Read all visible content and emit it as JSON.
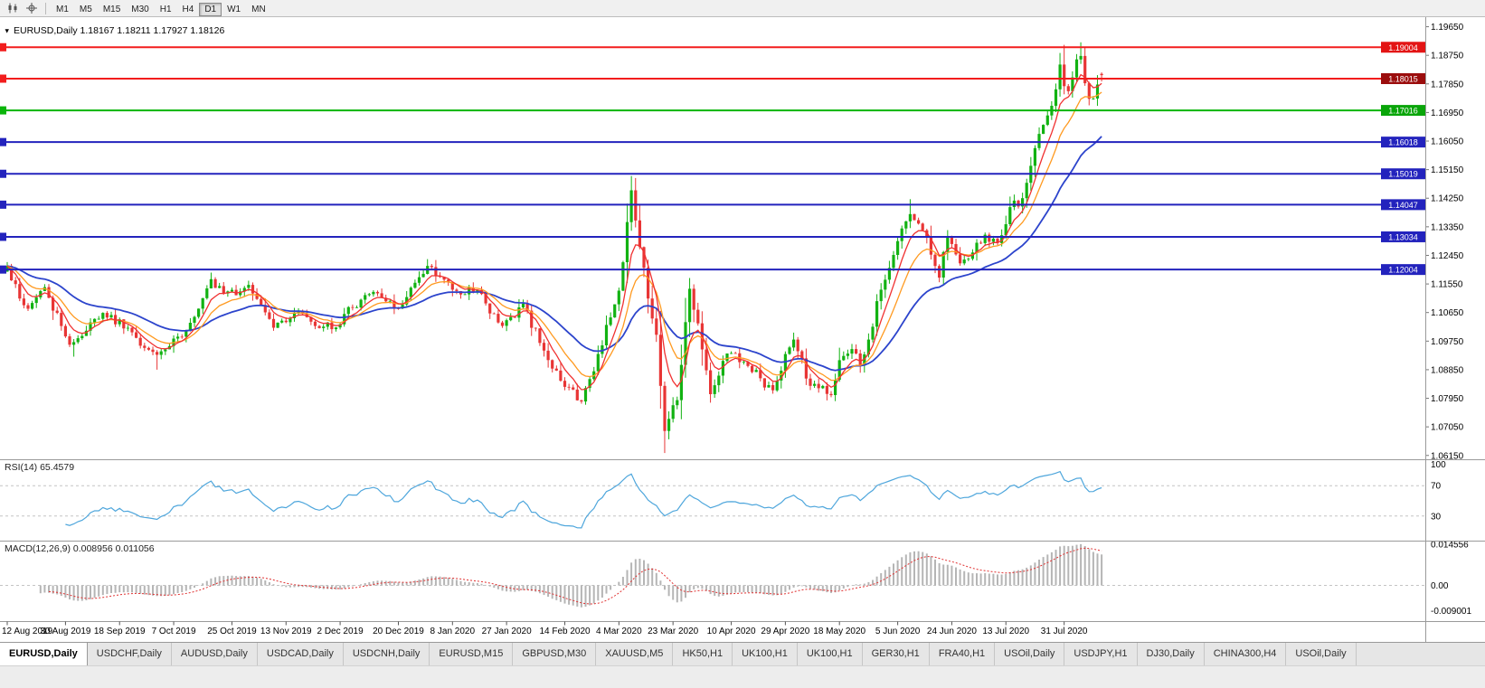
{
  "toolbar": {
    "timeframes": [
      "M1",
      "M5",
      "M15",
      "M30",
      "H1",
      "H4",
      "D1",
      "W1",
      "MN"
    ],
    "active_timeframe": "D1"
  },
  "chart_header": {
    "marker": "▼",
    "title": "EURUSD,Daily 1.18167 1.18211 1.17927 1.18126"
  },
  "colors": {
    "candle_up": "#12b212",
    "candle_down": "#e83535",
    "rsi": "#4ea6dc",
    "macd_hist": "#b5b5b5",
    "macd_signal": "#e03030",
    "panel_bg": "#ffffff"
  },
  "indicators": {
    "rsi": {
      "title": "RSI(14) 65.4579",
      "period": 14,
      "levels": [
        "100",
        "70",
        "30"
      ]
    },
    "macd": {
      "title": "MACD(12,26,9) 0.008956 0.011056",
      "fast": 12,
      "slow": 26,
      "signal": 9,
      "axis": [
        "0.014556",
        "0.00",
        "-0.009001"
      ]
    }
  },
  "chart_data": {
    "type": "candlestick",
    "symbol": "EURUSD",
    "timeframe": "Daily",
    "current_bar": {
      "open": 1.18167,
      "high": 1.18211,
      "low": 1.17927,
      "close": 1.18126
    },
    "candle_count": 264,
    "price_range": {
      "top": 1.1978,
      "bottom": 1.06115
    },
    "price_axis_ticks": [
      "1.19650",
      "1.18750",
      "1.17850",
      "1.16950",
      "1.16050",
      "1.15150",
      "1.14250",
      "1.13350",
      "1.12450",
      "1.11550",
      "1.10650",
      "1.09750",
      "1.08850",
      "1.07950",
      "1.07050",
      "1.06150"
    ],
    "horizontal_lines": [
      {
        "label": "1.19004",
        "color": "#f21d1d",
        "box": "#e31414"
      },
      {
        "label": "1.18015",
        "color": "#f21d1d",
        "box": "#9b0d0d"
      },
      {
        "label": "1.17016",
        "color": "#0ab50a",
        "box": "#09a509"
      },
      {
        "label": "1.16018",
        "color": "#2323bd",
        "box": "#2323bd"
      },
      {
        "label": "1.15019",
        "color": "#2323bd",
        "box": "#2323bd"
      },
      {
        "label": "1.14047",
        "color": "#2323bd",
        "box": "#2323bd"
      },
      {
        "label": "1.13034",
        "color": "#2323bd",
        "box": "#2323bd"
      },
      {
        "label": "1.12004",
        "color": "#2323bd",
        "box": "#2323bd"
      }
    ],
    "moving_averages": [
      {
        "name": "fast",
        "period": 6,
        "color": "#f03030"
      },
      {
        "name": "medium",
        "period": 12,
        "color": "#ff9a20"
      },
      {
        "name": "slow",
        "period": 30,
        "color": "#2c44cc"
      }
    ],
    "x_labels": [
      {
        "i": 0,
        "t": "12 Aug 2019"
      },
      {
        "i": 14,
        "t": "30 Aug 2019"
      },
      {
        "i": 27,
        "t": "18 Sep 2019"
      },
      {
        "i": 40,
        "t": "7 Oct 2019"
      },
      {
        "i": 54,
        "t": "25 Oct 2019"
      },
      {
        "i": 67,
        "t": "13 Nov 2019"
      },
      {
        "i": 80,
        "t": "2 Dec 2019"
      },
      {
        "i": 94,
        "t": "20 Dec 2019"
      },
      {
        "i": 107,
        "t": "8 Jan 2020"
      },
      {
        "i": 120,
        "t": "27 Jan 2020"
      },
      {
        "i": 134,
        "t": "14 Feb 2020"
      },
      {
        "i": 147,
        "t": "4 Mar 2020"
      },
      {
        "i": 160,
        "t": "23 Mar 2020"
      },
      {
        "i": 174,
        "t": "10 Apr 2020"
      },
      {
        "i": 187,
        "t": "29 Apr 2020"
      },
      {
        "i": 200,
        "t": "18 May 2020"
      },
      {
        "i": 214,
        "t": "5 Jun 2020"
      },
      {
        "i": 227,
        "t": "24 Jun 2020"
      },
      {
        "i": 240,
        "t": "13 Jul 2020"
      },
      {
        "i": 254,
        "t": "31 Jul 2020"
      }
    ],
    "anchors": [
      {
        "i": 0,
        "c": 1.1212
      },
      {
        "i": 3,
        "c": 1.1109
      },
      {
        "i": 5,
        "c": 1.1077
      },
      {
        "i": 9,
        "c": 1.1145
      },
      {
        "i": 14,
        "c": 1.099
      },
      {
        "i": 16,
        "c": 1.0972,
        "l": 1.0926
      },
      {
        "i": 23,
        "c": 1.1064
      },
      {
        "i": 29,
        "c": 1.1017
      },
      {
        "i": 36,
        "c": 1.0932,
        "l": 1.0885
      },
      {
        "i": 42,
        "c": 1.0989
      },
      {
        "i": 49,
        "c": 1.117
      },
      {
        "i": 52,
        "c": 1.1125
      },
      {
        "i": 58,
        "c": 1.1152
      },
      {
        "i": 64,
        "c": 1.1017
      },
      {
        "i": 70,
        "c": 1.1068
      },
      {
        "i": 75,
        "c": 1.1016
      },
      {
        "i": 79,
        "c": 1.1018
      },
      {
        "i": 82,
        "c": 1.1082
      },
      {
        "i": 88,
        "c": 1.113
      },
      {
        "i": 94,
        "c": 1.1078
      },
      {
        "i": 101,
        "c": 1.1212
      },
      {
        "i": 106,
        "c": 1.116
      },
      {
        "i": 109,
        "c": 1.1122
      },
      {
        "i": 113,
        "c": 1.1136
      },
      {
        "i": 119,
        "c": 1.1023
      },
      {
        "i": 124,
        "c": 1.1093
      },
      {
        "i": 129,
        "c": 1.0945
      },
      {
        "i": 134,
        "c": 1.0831
      },
      {
        "i": 138,
        "c": 1.0785,
        "l": 1.0778
      },
      {
        "i": 141,
        "c": 1.088
      },
      {
        "i": 144,
        "c": 1.1026
      },
      {
        "i": 147,
        "c": 1.1134
      },
      {
        "i": 150,
        "c": 1.145,
        "h": 1.1495
      },
      {
        "i": 152,
        "c": 1.1271
      },
      {
        "i": 154,
        "c": 1.1109
      },
      {
        "i": 156,
        "c": 1.0995
      },
      {
        "i": 158,
        "c": 1.0692,
        "l": 1.0636
      },
      {
        "i": 161,
        "c": 1.0789
      },
      {
        "i": 164,
        "c": 1.114
      },
      {
        "i": 166,
        "c": 1.1031
      },
      {
        "i": 169,
        "c": 1.0808
      },
      {
        "i": 173,
        "c": 1.0936
      },
      {
        "i": 177,
        "c": 1.091
      },
      {
        "i": 181,
        "c": 1.0858
      },
      {
        "i": 184,
        "c": 1.082
      },
      {
        "i": 188,
        "c": 1.0955
      },
      {
        "i": 189,
        "c": 1.098
      },
      {
        "i": 193,
        "c": 1.0834
      },
      {
        "i": 198,
        "c": 1.0805
      },
      {
        "i": 200,
        "c": 1.0915
      },
      {
        "i": 203,
        "c": 1.095
      },
      {
        "i": 205,
        "c": 1.0898
      },
      {
        "i": 207,
        "c": 1.098
      },
      {
        "i": 209,
        "c": 1.1101
      },
      {
        "i": 214,
        "c": 1.129
      },
      {
        "i": 217,
        "c": 1.1375,
        "h": 1.1422
      },
      {
        "i": 220,
        "c": 1.1324
      },
      {
        "i": 224,
        "c": 1.1175
      },
      {
        "i": 226,
        "c": 1.1306
      },
      {
        "i": 229,
        "c": 1.122
      },
      {
        "i": 231,
        "c": 1.1234
      },
      {
        "i": 235,
        "c": 1.131
      },
      {
        "i": 238,
        "c": 1.1284
      },
      {
        "i": 241,
        "c": 1.1397
      },
      {
        "i": 244,
        "c": 1.1425
      },
      {
        "i": 246,
        "c": 1.1527
      },
      {
        "i": 249,
        "c": 1.1656
      },
      {
        "i": 251,
        "c": 1.1716
      },
      {
        "i": 253,
        "c": 1.1846
      },
      {
        "i": 254,
        "c": 1.1778,
        "h": 1.1908
      },
      {
        "i": 255,
        "c": 1.1762
      },
      {
        "i": 257,
        "c": 1.1862
      },
      {
        "i": 258,
        "c": 1.1873,
        "h": 1.1916
      },
      {
        "i": 259,
        "c": 1.1787
      },
      {
        "i": 260,
        "c": 1.1738
      },
      {
        "i": 261,
        "c": 1.1739
      },
      {
        "i": 262,
        "c": 1.1783
      },
      {
        "i": 263,
        "c": 1.18126
      }
    ]
  },
  "tabs": {
    "active_index": 0,
    "items": [
      "EURUSD,Daily",
      "USDCHF,Daily",
      "AUDUSD,Daily",
      "USDCAD,Daily",
      "USDCNH,Daily",
      "EURUSD,M15",
      "GBPUSD,M30",
      "XAUUSD,M5",
      "HK50,H1",
      "UK100,H1",
      "UK100,H1",
      "GER30,H1",
      "FRA40,H1",
      "USOil,Daily",
      "USDJPY,H1",
      "DJ30,Daily",
      "CHINA300,H4",
      "USOil,Daily"
    ]
  }
}
